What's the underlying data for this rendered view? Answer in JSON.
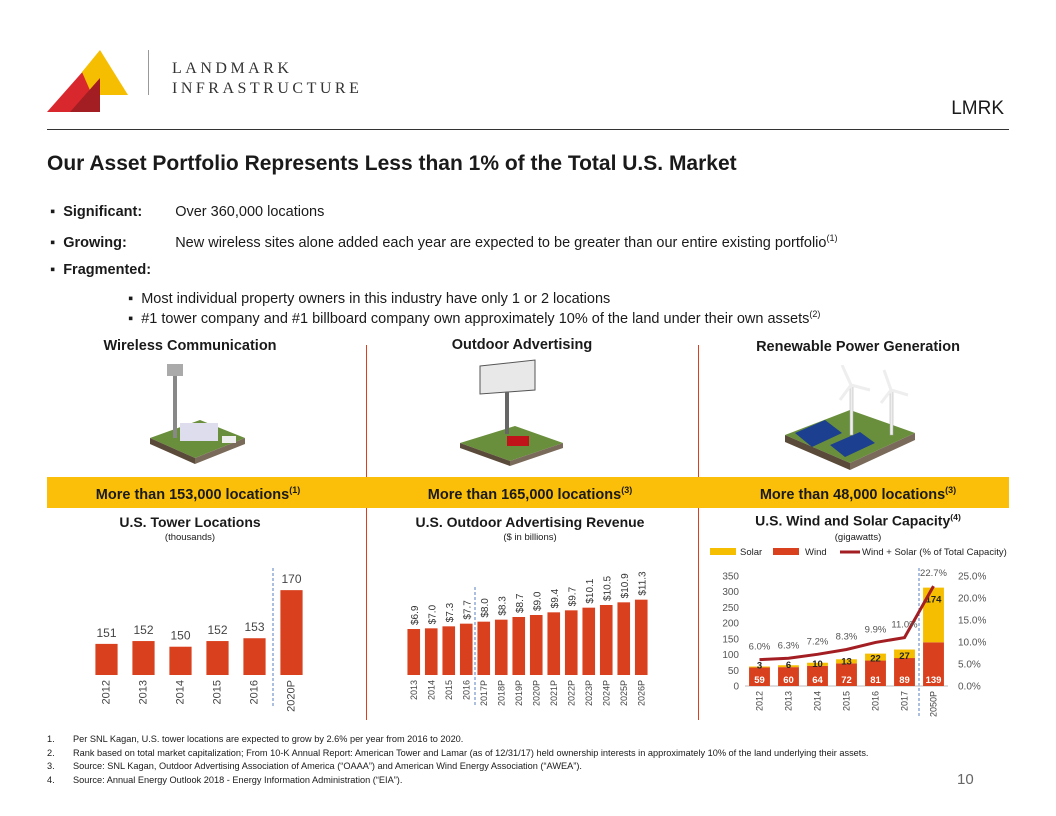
{
  "header": {
    "logo_line1": "LANDMARK",
    "logo_line2": "INFRASTRUCTURE",
    "ticker": "LMRK"
  },
  "title": "Our Asset Portfolio Represents Less than 1% of the Total U.S. Market",
  "bullets": [
    {
      "label": "Significant:",
      "text": "Over 360,000 locations"
    },
    {
      "label": "Growing:",
      "text": "New wireless sites alone added each year are expected to be greater than our entire existing portfolio",
      "sup": "(1)"
    },
    {
      "label": "Fragmented:",
      "sub_bullets": [
        {
          "text": "Most individual property owners in this industry have only 1 or 2 locations"
        },
        {
          "text": "#1 tower company and #1 billboard company own approximately 10% of the land under their own assets",
          "sup": "(2)"
        }
      ]
    }
  ],
  "columns": [
    {
      "heading": "Wireless Communication",
      "highlight": "More than 153,000 locations",
      "sup": "(1)"
    },
    {
      "heading": "Outdoor Advertising",
      "highlight": "More than 165,000 locations",
      "sup": "(3)"
    },
    {
      "heading": "Renewable Power Generation",
      "highlight": "More than 48,000 locations",
      "sup": "(3)"
    }
  ],
  "chart_data": [
    {
      "type": "bar",
      "title": "U.S. Tower Locations",
      "subtitle": "(thousands)",
      "categories": [
        "2012",
        "2013",
        "2014",
        "2015",
        "2016",
        "2020P"
      ],
      "values": [
        151,
        152,
        150,
        152,
        153,
        170
      ],
      "color": "#d9411e",
      "ylim": [
        140,
        175
      ]
    },
    {
      "type": "bar",
      "title": "U.S. Outdoor Advertising Revenue",
      "subtitle": "($ in billions)",
      "categories": [
        "2013",
        "2014",
        "2015",
        "2016",
        "2017P",
        "2018P",
        "2019P",
        "2020P",
        "2021P",
        "2022P",
        "2023P",
        "2024P",
        "2025P",
        "2026P"
      ],
      "values": [
        6.9,
        7.0,
        7.3,
        7.7,
        8.0,
        8.3,
        8.7,
        9.0,
        9.4,
        9.7,
        10.1,
        10.5,
        10.9,
        11.3
      ],
      "value_labels": [
        "$6.9",
        "$7.0",
        "$7.3",
        "$7.7",
        "$8.0",
        "$8.3",
        "$8.7",
        "$9.0",
        "$9.4",
        "$9.7",
        "$10.1",
        "$10.5",
        "$10.9",
        "$11.3"
      ],
      "color": "#d9411e",
      "ylim": [
        0,
        12
      ]
    },
    {
      "type": "bar",
      "title": "U.S. Wind and Solar Capacity",
      "title_sup": "(4)",
      "subtitle": "(gigawatts)",
      "categories": [
        "2012",
        "2013",
        "2014",
        "2015",
        "2016",
        "2017",
        "2050P"
      ],
      "series": [
        {
          "name": "Wind",
          "type": "bar",
          "color": "#d9411e",
          "values": [
            59,
            60,
            64,
            72,
            81,
            89,
            139
          ]
        },
        {
          "name": "Solar",
          "type": "bar",
          "color": "#f5be00",
          "values": [
            3,
            6,
            10,
            13,
            22,
            27,
            174
          ]
        },
        {
          "name": "Wind + Solar (% of Total Capacity)",
          "type": "line",
          "axis": "y2",
          "color": "#a31e22",
          "values": [
            6.0,
            6.3,
            7.2,
            8.3,
            9.9,
            11.0,
            22.7
          ],
          "value_labels": [
            "6.0%",
            "6.3%",
            "7.2%",
            "8.3%",
            "9.9%",
            "11.0%",
            "22.7%"
          ]
        }
      ],
      "ylim": [
        0,
        350
      ],
      "yticks": [
        0,
        50,
        100,
        150,
        200,
        250,
        300,
        350
      ],
      "y2lim": [
        0,
        25
      ],
      "y2ticks": [
        {
          "value": 0,
          "label": "0.0%"
        },
        {
          "value": 5,
          "label": "5.0%"
        },
        {
          "value": 10,
          "label": "10.0%"
        },
        {
          "value": 15,
          "label": "15.0%"
        },
        {
          "value": 20,
          "label": "20.0%"
        },
        {
          "value": 25,
          "label": "25.0%"
        }
      ],
      "grid": false
    }
  ],
  "footnotes": [
    {
      "number": "1.",
      "text": "Per SNL Kagan, U.S. tower locations are expected to grow by 2.6% per year from 2016 to 2020."
    },
    {
      "number": "2.",
      "text": "Rank based on total market capitalization; From 10-K Annual Report: American Tower and Lamar (as of 12/31/17) held ownership interests in approximately 10% of the land underlying their assets."
    },
    {
      "number": "3.",
      "text": "Source: SNL Kagan, Outdoor Advertising Association of America (“OAAA”) and American Wind Energy Association (“AWEA”)."
    },
    {
      "number": "4.",
      "text": "Source: Annual Energy Outlook 2018 - Energy Information Administration (“EIA”)."
    }
  ],
  "page_number": "10"
}
